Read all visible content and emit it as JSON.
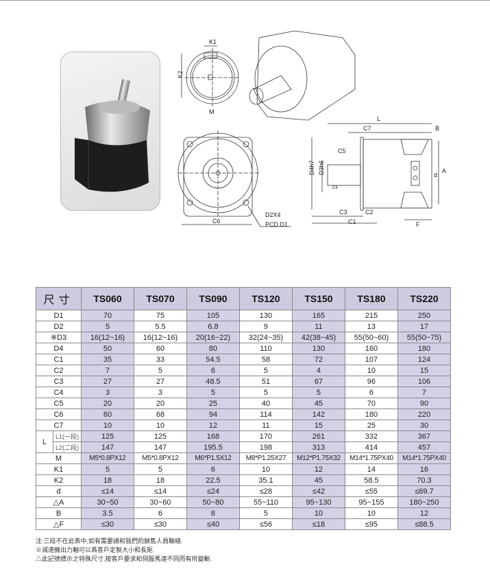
{
  "drawing_labels": {
    "k1": "K1",
    "k2": "K2",
    "m": "M",
    "c6": "C6",
    "d2x4": "D2X4",
    "pcd": "PCD.D1",
    "l": "L",
    "c7": "C7",
    "b": "B",
    "c5": "C5",
    "d4": "D4h7",
    "d3": "D3h6",
    "c4": "C4",
    "a": "A",
    "d": "d",
    "c3": "C3",
    "c2": "C2",
    "c1": "C1",
    "f": "F"
  },
  "table": {
    "header_label": "尺寸",
    "columns": [
      "TS060",
      "TS070",
      "TS090",
      "TS120",
      "TS150",
      "TS180",
      "TS220"
    ],
    "rows": [
      {
        "label": "D1",
        "values": [
          "70",
          "75",
          "105",
          "130",
          "165",
          "215",
          "250"
        ]
      },
      {
        "label": "D2",
        "values": [
          "5",
          "5.5",
          "6.8",
          "9",
          "11",
          "13",
          "17"
        ]
      },
      {
        "label": "※D3",
        "values": [
          "16(12~16)",
          "16(12~16)",
          "20(16~22)",
          "32(24~35)",
          "42(38~45)",
          "55(50~60)",
          "55(50~75)"
        ]
      },
      {
        "label": "D4",
        "values": [
          "50",
          "60",
          "80",
          "110",
          "130",
          "160",
          "180"
        ]
      },
      {
        "label": "C1",
        "values": [
          "35",
          "33",
          "54.5",
          "58",
          "72",
          "107",
          "124"
        ]
      },
      {
        "label": "C2",
        "values": [
          "7",
          "5",
          "6",
          "5",
          "4",
          "10",
          "15"
        ]
      },
      {
        "label": "C3",
        "values": [
          "27",
          "27",
          "48.5",
          "51",
          "67",
          "96",
          "106"
        ]
      },
      {
        "label": "C4",
        "values": [
          "3",
          "3",
          "5",
          "5",
          "5",
          "6",
          "7"
        ]
      },
      {
        "label": "C5",
        "values": [
          "20",
          "20",
          "25",
          "40",
          "45",
          "70",
          "90"
        ]
      },
      {
        "label": "C6",
        "values": [
          "60",
          "68",
          "94",
          "114",
          "142",
          "180",
          "220"
        ]
      },
      {
        "label": "C7",
        "values": [
          "10",
          "10",
          "12",
          "11",
          "15",
          "25",
          "30"
        ]
      },
      {
        "label": "L",
        "sub": "L1(一段)",
        "values": [
          "125",
          "125",
          "168",
          "170",
          "261",
          "332",
          "367"
        ]
      },
      {
        "label": "L",
        "sub": "L2(二段)",
        "values": [
          "147",
          "147",
          "195.5",
          "198",
          "313",
          "414",
          "457"
        ]
      },
      {
        "label": "M",
        "values": [
          "M5*0.8PX12",
          "M5*0.8PX12",
          "M6*P1.5X12",
          "M8*P1.25X27",
          "M12*P1.75X32",
          "M14*1.75PX40",
          "M14*1.75PX40"
        ]
      },
      {
        "label": "K1",
        "values": [
          "5",
          "5",
          "6",
          "10",
          "12",
          "14",
          "16"
        ]
      },
      {
        "label": "K2",
        "values": [
          "18",
          "18",
          "22.5",
          "35.1",
          "45",
          "58.5",
          "70.3"
        ]
      },
      {
        "label": "d",
        "values": [
          "≤14",
          "≤14",
          "≤24",
          "≤28",
          "≤42",
          "≤55",
          "≤69.7"
        ]
      },
      {
        "label": "△A",
        "values": [
          "30~50",
          "30~60",
          "50~80",
          "55~110",
          "95~130",
          "95~155",
          "180~250"
        ]
      },
      {
        "label": "B",
        "values": [
          "3.5",
          "6",
          "8",
          "5",
          "10",
          "10",
          "12"
        ]
      },
      {
        "label": "△F",
        "values": [
          "≤30",
          "≤30",
          "≤40",
          "≤56",
          "≤18",
          "≤95",
          "≤88.5"
        ]
      }
    ],
    "shade_color": "#d5d0e6"
  },
  "notes": [
    "注:三段不在此表中,如有需要請和我們的銷售人員聯絡.",
    "※減速機出力軸可以爲客戶定製大小和長矩.",
    "△此記號標示之特殊尺寸,按客戶要求和伺服馬達不同而有所變動."
  ]
}
